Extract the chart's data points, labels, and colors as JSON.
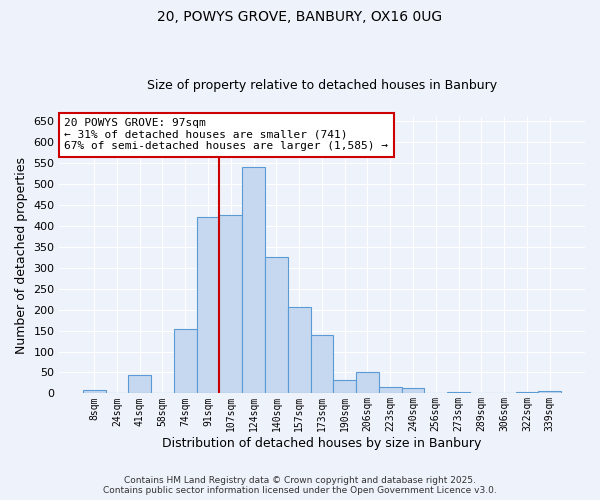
{
  "title": "20, POWYS GROVE, BANBURY, OX16 0UG",
  "subtitle": "Size of property relative to detached houses in Banbury",
  "xlabel": "Distribution of detached houses by size in Banbury",
  "ylabel": "Number of detached properties",
  "bin_labels": [
    "8sqm",
    "24sqm",
    "41sqm",
    "58sqm",
    "74sqm",
    "91sqm",
    "107sqm",
    "124sqm",
    "140sqm",
    "157sqm",
    "173sqm",
    "190sqm",
    "206sqm",
    "223sqm",
    "240sqm",
    "256sqm",
    "273sqm",
    "289sqm",
    "306sqm",
    "322sqm",
    "339sqm"
  ],
  "bar_heights": [
    8,
    0,
    44,
    0,
    153,
    421,
    425,
    541,
    325,
    205,
    140,
    32,
    50,
    15,
    12,
    0,
    4,
    0,
    0,
    3,
    5
  ],
  "bar_color": "#c5d8f0",
  "bar_edge_color": "#5b9bd5",
  "vline_color": "#cc0000",
  "annotation_title": "20 POWYS GROVE: 97sqm",
  "annotation_line1": "← 31% of detached houses are smaller (741)",
  "annotation_line2": "67% of semi-detached houses are larger (1,585) →",
  "annotation_box_color": "white",
  "annotation_box_edge_color": "#cc0000",
  "ylim": [
    0,
    660
  ],
  "yticks": [
    0,
    50,
    100,
    150,
    200,
    250,
    300,
    350,
    400,
    450,
    500,
    550,
    600,
    650
  ],
  "footer_line1": "Contains HM Land Registry data © Crown copyright and database right 2025.",
  "footer_line2": "Contains public sector information licensed under the Open Government Licence v3.0.",
  "background_color": "#eef2fa",
  "grid_color": "#ffffff",
  "title_fontsize": 10,
  "subtitle_fontsize": 9
}
